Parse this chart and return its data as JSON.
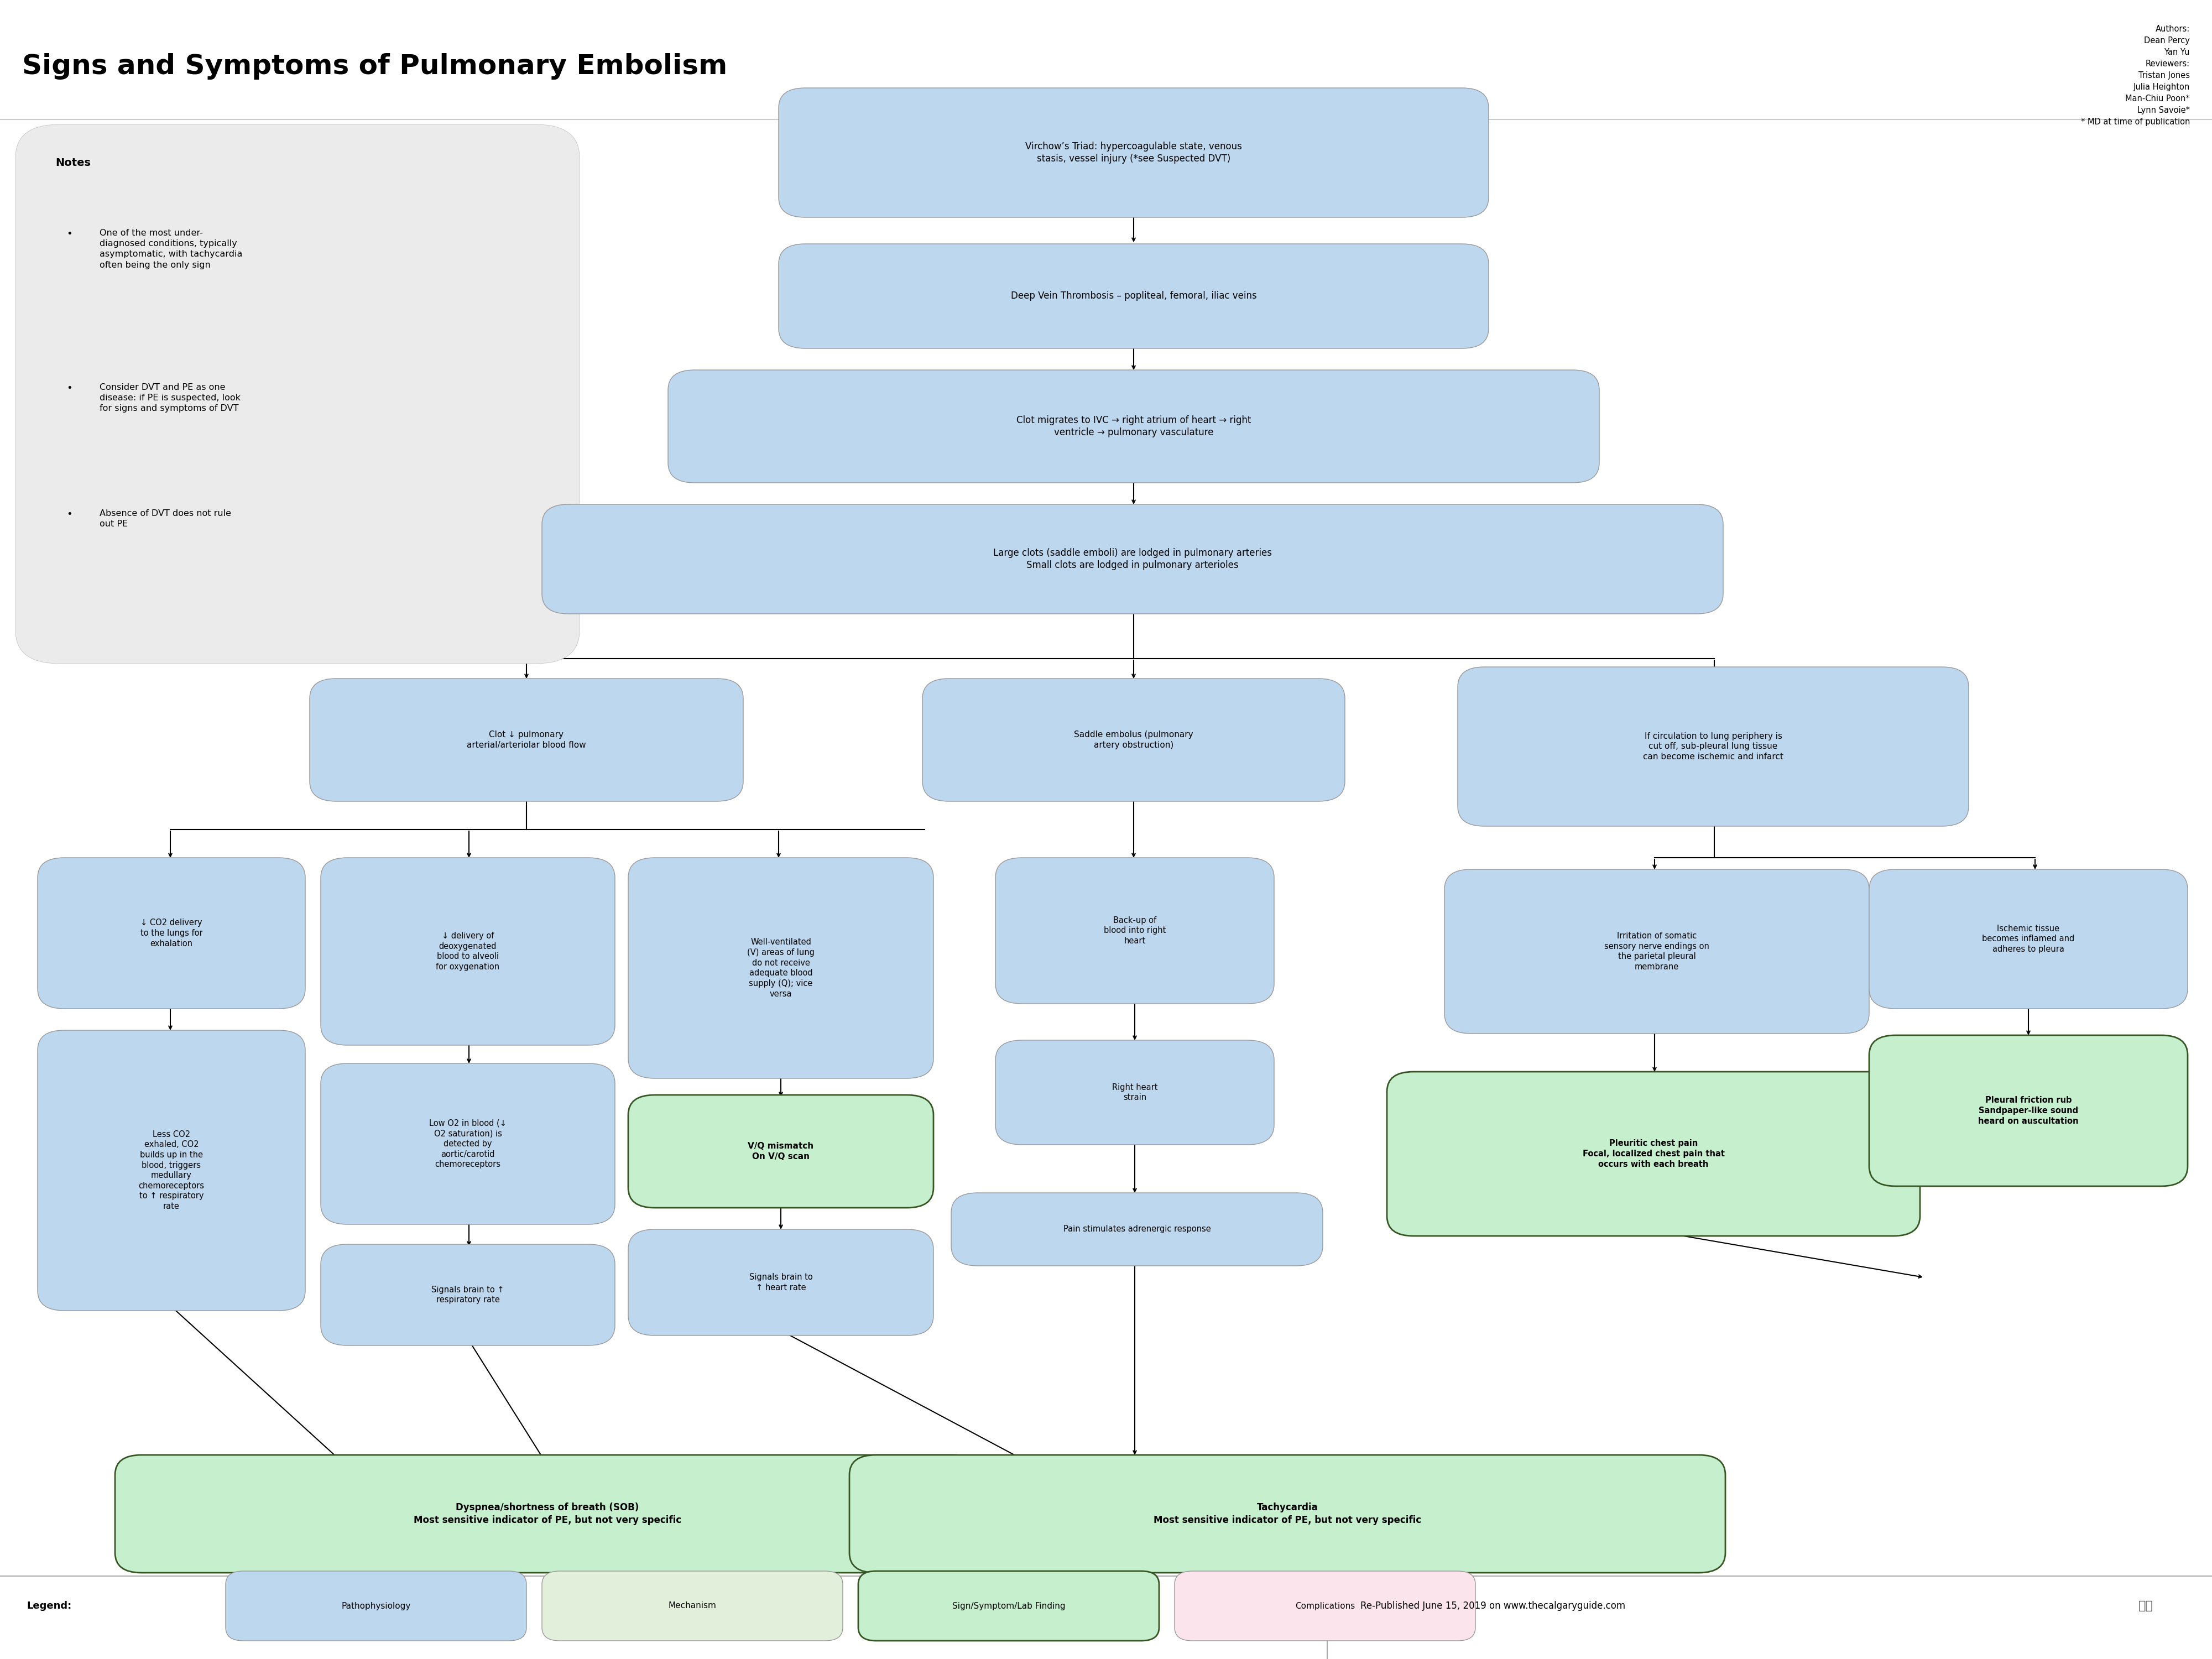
{
  "title": "Signs and Symptoms of Pulmonary Embolism",
  "authors_text": "Authors:\nDean Percy\nYan Yu\nReviewers:\nTristan Jones\nJulia Heighton\nMan-Chiu Poon*\nLynn Savoie*\n* MD at time of publication",
  "notes_title": "Notes",
  "notes_bullets": [
    "One of the most under-\ndiagnosed conditions, typically\nasymptomatic, with tachycardia\noften being the only sign",
    "Consider DVT and PE as one\ndisease: if PE is suspected, look\nfor signs and symptoms of DVT",
    "Absence of DVT does not rule\nout PE"
  ],
  "colors": {
    "background": "#FFFFFF",
    "notes_box": "#EBEBEB",
    "light_blue": "#BDD7EE",
    "light_green": "#C6EFCE",
    "green_border": "#375623",
    "legend_mech": "#E2EFDA",
    "legend_comp": "#FCE4EC",
    "arrow_color": "#000000",
    "border_color": "#999999"
  },
  "footer": "Re-Published June 15, 2019 on www.thecalgaryguide.com"
}
